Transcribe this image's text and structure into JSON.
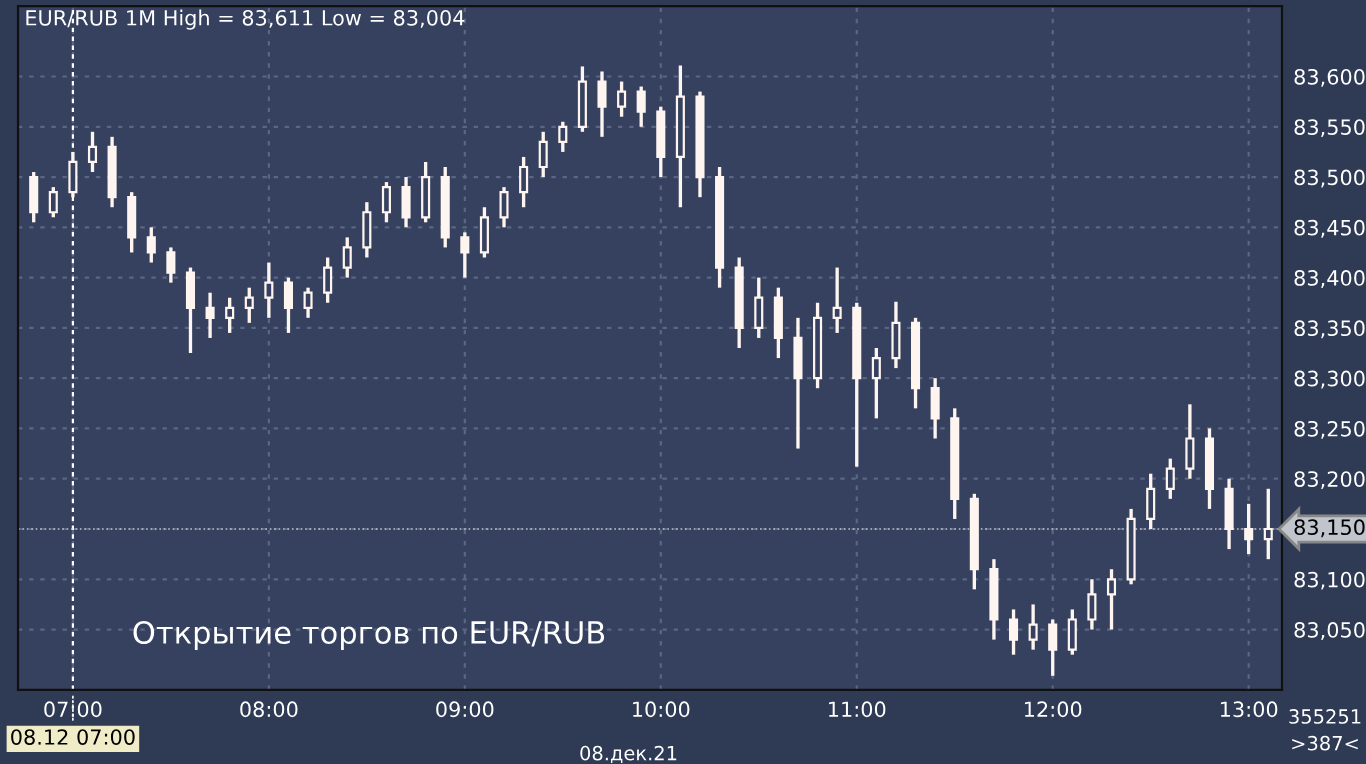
{
  "chart_data": {
    "type": "candlestick",
    "title": "EUR/RUB 1M High = 83,611 Low = 83,004",
    "color": "#fff5f0",
    "x": [
      6.8,
      6.9,
      7.0,
      7.1,
      7.2,
      7.3,
      7.4,
      7.5,
      7.6,
      7.7,
      7.8,
      7.9,
      8.0,
      8.1,
      8.2,
      8.3,
      8.4,
      8.5,
      8.6,
      8.7,
      8.8,
      8.9,
      9.0,
      9.1,
      9.2,
      9.3,
      9.4,
      9.5,
      9.6,
      9.7,
      9.8,
      9.9,
      10.0,
      10.1,
      10.2,
      10.3,
      10.4,
      10.5,
      10.6,
      10.7,
      10.8,
      10.9,
      11.0,
      11.1,
      11.2,
      11.3,
      11.4,
      11.5,
      11.6,
      11.7,
      11.8,
      11.9,
      12.0,
      12.1,
      12.2,
      12.3,
      12.4,
      12.5,
      12.6,
      12.7,
      12.8,
      12.9,
      13.0,
      13.1
    ],
    "ohlc": [
      [
        83500,
        83505,
        83455,
        83465
      ],
      [
        83465,
        83490,
        83460,
        83485
      ],
      [
        83485,
        83525,
        83480,
        83515
      ],
      [
        83515,
        83545,
        83505,
        83530
      ],
      [
        83530,
        83540,
        83470,
        83480
      ],
      [
        83480,
        83485,
        83425,
        83440
      ],
      [
        83440,
        83450,
        83415,
        83425
      ],
      [
        83425,
        83430,
        83395,
        83405
      ],
      [
        83405,
        83410,
        83325,
        83370
      ],
      [
        83370,
        83385,
        83340,
        83360
      ],
      [
        83360,
        83380,
        83345,
        83370
      ],
      [
        83370,
        83390,
        83355,
        83380
      ],
      [
        83380,
        83415,
        83360,
        83395
      ],
      [
        83395,
        83400,
        83345,
        83370
      ],
      [
        83370,
        83390,
        83360,
        83385
      ],
      [
        83385,
        83420,
        83375,
        83410
      ],
      [
        83410,
        83440,
        83400,
        83430
      ],
      [
        83430,
        83475,
        83420,
        83465
      ],
      [
        83465,
        83495,
        83455,
        83490
      ],
      [
        83490,
        83500,
        83450,
        83460
      ],
      [
        83460,
        83515,
        83455,
        83500
      ],
      [
        83500,
        83510,
        83430,
        83440
      ],
      [
        83440,
        83445,
        83400,
        83425
      ],
      [
        83425,
        83470,
        83420,
        83460
      ],
      [
        83460,
        83490,
        83450,
        83485
      ],
      [
        83485,
        83520,
        83470,
        83510
      ],
      [
        83510,
        83545,
        83500,
        83535
      ],
      [
        83535,
        83555,
        83525,
        83550
      ],
      [
        83550,
        83610,
        83545,
        83595
      ],
      [
        83595,
        83605,
        83540,
        83570
      ],
      [
        83570,
        83595,
        83560,
        83585
      ],
      [
        83585,
        83590,
        83550,
        83565
      ],
      [
        83565,
        83570,
        83500,
        83520
      ],
      [
        83520,
        83611,
        83470,
        83580
      ],
      [
        83580,
        83585,
        83480,
        83500
      ],
      [
        83500,
        83510,
        83390,
        83410
      ],
      [
        83410,
        83420,
        83330,
        83350
      ],
      [
        83350,
        83400,
        83340,
        83380
      ],
      [
        83380,
        83390,
        83320,
        83340
      ],
      [
        83340,
        83360,
        83230,
        83300
      ],
      [
        83300,
        83375,
        83290,
        83360
      ],
      [
        83360,
        83410,
        83345,
        83370
      ],
      [
        83370,
        83375,
        83212,
        83300
      ],
      [
        83300,
        83330,
        83260,
        83320
      ],
      [
        83320,
        83376,
        83310,
        83355
      ],
      [
        83355,
        83360,
        83270,
        83290
      ],
      [
        83290,
        83300,
        83240,
        83260
      ],
      [
        83260,
        83270,
        83160,
        83180
      ],
      [
        83180,
        83185,
        83090,
        83110
      ],
      [
        83110,
        83120,
        83040,
        83060
      ],
      [
        83060,
        83070,
        83025,
        83040
      ],
      [
        83040,
        83075,
        83030,
        83055
      ],
      [
        83055,
        83060,
        83004,
        83030
      ],
      [
        83030,
        83070,
        83025,
        83060
      ],
      [
        83060,
        83100,
        83050,
        83085
      ],
      [
        83085,
        83110,
        83050,
        83100
      ],
      [
        83100,
        83170,
        83095,
        83160
      ],
      [
        83160,
        83205,
        83150,
        83190
      ],
      [
        83190,
        83220,
        83180,
        83210
      ],
      [
        83210,
        83274,
        83200,
        83240
      ],
      [
        83240,
        83250,
        83170,
        83190
      ],
      [
        83190,
        83200,
        83130,
        83150
      ],
      [
        83150,
        83175,
        83125,
        83140
      ],
      [
        83140,
        83190,
        83120,
        83150
      ]
    ],
    "xlim": [
      6.72,
      13.17
    ],
    "xticks": [
      {
        "value": 7,
        "label": "07:00"
      },
      {
        "value": 8,
        "label": "08:00"
      },
      {
        "value": 9,
        "label": "09:00"
      },
      {
        "value": 10,
        "label": "10:00"
      },
      {
        "value": 11,
        "label": "11:00"
      },
      {
        "value": 12,
        "label": "12:00"
      },
      {
        "value": 13,
        "label": "13:00"
      }
    ],
    "ylim": [
      82990,
      83670
    ],
    "yticks": [
      {
        "value": 83050,
        "label": "83,050"
      },
      {
        "value": 83100,
        "label": "83,100"
      },
      {
        "value": 83150,
        "label": "83,150"
      },
      {
        "value": 83200,
        "label": "83,200"
      },
      {
        "value": 83250,
        "label": "83,250"
      },
      {
        "value": 83300,
        "label": "83,300"
      },
      {
        "value": 83350,
        "label": "83,350"
      },
      {
        "value": 83400,
        "label": "83,400"
      },
      {
        "value": 83450,
        "label": "83,450"
      },
      {
        "value": 83500,
        "label": "83,500"
      },
      {
        "value": 83550,
        "label": "83,550"
      },
      {
        "value": 83600,
        "label": "83,600"
      }
    ],
    "ref_lines": [
      {
        "axis": "x",
        "value": 7,
        "label": "08.12 07:00",
        "color": "#ffffff",
        "line_style": "dashed"
      },
      {
        "axis": "y",
        "value": 83150,
        "label": "83,150",
        "color": "#c0c4cc"
      }
    ],
    "annotations": [
      "Открытие торгов по EUR/RUB",
      "08.дек.21",
      "355251",
      ">387<"
    ],
    "grid": true
  }
}
